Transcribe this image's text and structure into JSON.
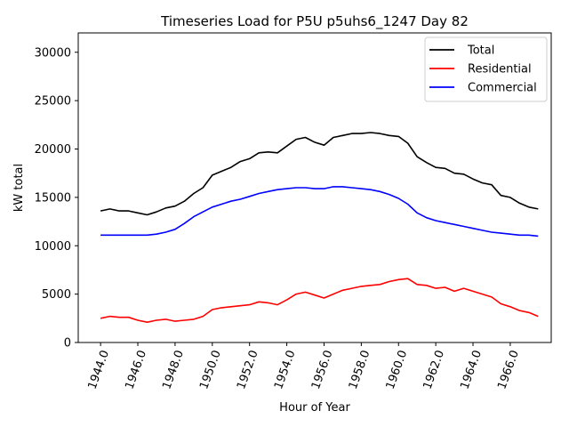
{
  "chart_data": {
    "type": "line",
    "title": "Timeseries Load for P5U p5uhs6_1247  Day 82",
    "xlabel": "Hour of Year",
    "ylabel": "kW total",
    "xlim": [
      1942.8,
      1968.2
    ],
    "ylim": [
      0,
      32000
    ],
    "xticks": [
      1944,
      1946,
      1948,
      1950,
      1952,
      1954,
      1956,
      1958,
      1960,
      1962,
      1964,
      1966
    ],
    "xtick_labels": [
      "1944.0",
      "1946.0",
      "1948.0",
      "1950.0",
      "1952.0",
      "1954.0",
      "1956.0",
      "1958.0",
      "1960.0",
      "1962.0",
      "1964.0",
      "1966.0"
    ],
    "yticks": [
      0,
      5000,
      10000,
      15000,
      20000,
      25000,
      30000
    ],
    "ytick_labels": [
      "0",
      "5000",
      "10000",
      "15000",
      "20000",
      "25000",
      "30000"
    ],
    "legend_position": "top-right",
    "x": [
      1944.0,
      1944.5,
      1945.0,
      1945.5,
      1946.0,
      1946.5,
      1947.0,
      1947.5,
      1948.0,
      1948.5,
      1949.0,
      1949.5,
      1950.0,
      1950.5,
      1951.0,
      1951.5,
      1952.0,
      1952.5,
      1953.0,
      1953.5,
      1954.0,
      1954.5,
      1955.0,
      1955.5,
      1956.0,
      1956.5,
      1957.0,
      1957.5,
      1958.0,
      1958.5,
      1959.0,
      1959.5,
      1960.0,
      1960.5,
      1961.0,
      1961.5,
      1962.0,
      1962.5,
      1963.0,
      1963.5,
      1964.0,
      1964.5,
      1965.0,
      1965.5,
      1966.0,
      1966.5,
      1967.0,
      1967.5
    ],
    "series": [
      {
        "name": "Total",
        "color": "#000000",
        "values": [
          13600,
          13800,
          13600,
          13600,
          13400,
          13200,
          13500,
          13900,
          14100,
          14600,
          15400,
          16000,
          17300,
          17700,
          18100,
          18700,
          19000,
          19600,
          19700,
          19600,
          20300,
          21000,
          21200,
          20700,
          20400,
          21200,
          21400,
          21600,
          21600,
          21700,
          21600,
          21400,
          21300,
          20600,
          19200,
          18600,
          18100,
          18000,
          17500,
          17400,
          16900,
          16500,
          16300,
          15200,
          15000,
          14400,
          14000,
          13800
        ]
      },
      {
        "name": "Residential",
        "color": "#ff0000",
        "values": [
          2500,
          2700,
          2600,
          2600,
          2300,
          2100,
          2300,
          2400,
          2200,
          2300,
          2400,
          2700,
          3400,
          3600,
          3700,
          3800,
          3900,
          4200,
          4100,
          3900,
          4400,
          5000,
          5200,
          4900,
          4600,
          5000,
          5400,
          5600,
          5800,
          5900,
          6000,
          6300,
          6500,
          6600,
          6000,
          5900,
          5600,
          5700,
          5300,
          5600,
          5300,
          5000,
          4700,
          4000,
          3700,
          3300,
          3100,
          2700
        ]
      },
      {
        "name": "Commercial",
        "color": "#0000ff",
        "values": [
          11100,
          11100,
          11100,
          11100,
          11100,
          11100,
          11200,
          11400,
          11700,
          12300,
          13000,
          13500,
          14000,
          14300,
          14600,
          14800,
          15100,
          15400,
          15600,
          15800,
          15900,
          16000,
          16000,
          15900,
          15900,
          16100,
          16100,
          16000,
          15900,
          15800,
          15600,
          15300,
          14900,
          14300,
          13400,
          12900,
          12600,
          12400,
          12200,
          12000,
          11800,
          11600,
          11400,
          11300,
          11200,
          11100,
          11100,
          11000
        ]
      }
    ]
  }
}
